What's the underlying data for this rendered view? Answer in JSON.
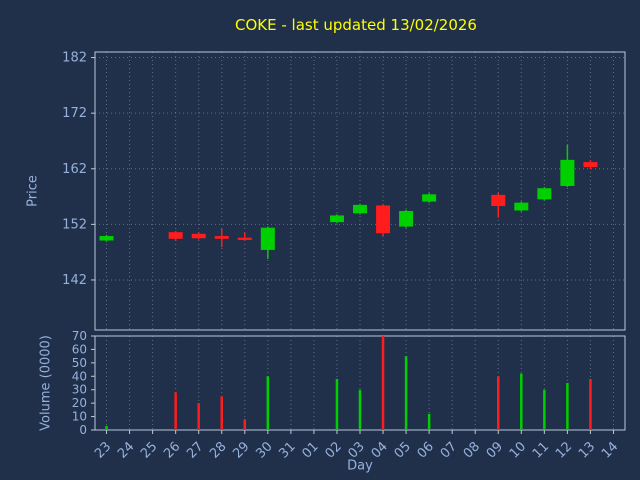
{
  "title": {
    "text": "COKE - last updated 13/02/2026",
    "color": "#ffff00"
  },
  "chart_data": {
    "type": "candlestick",
    "xlabel": "Day",
    "x_categories": [
      "23",
      "24",
      "25",
      "26",
      "27",
      "28",
      "29",
      "30",
      "31",
      "01",
      "02",
      "03",
      "04",
      "05",
      "06",
      "07",
      "08",
      "09",
      "10",
      "11",
      "12",
      "13",
      "14"
    ],
    "price_axis": {
      "label": "Price",
      "ticks": [
        142,
        152,
        162,
        172,
        182
      ],
      "range": [
        133,
        183
      ]
    },
    "volume_axis": {
      "label": "Volume (0000)",
      "ticks": [
        0,
        10,
        20,
        30,
        40,
        50,
        60,
        70
      ],
      "range": [
        0,
        70
      ]
    },
    "candles": [
      {
        "day": "23",
        "open": 149.1,
        "high": 150.1,
        "low": 148.9,
        "close": 149.9,
        "volume": 3
      },
      {
        "day": "26",
        "open": 150.6,
        "high": 150.8,
        "low": 149.0,
        "close": 149.4,
        "volume": 28
      },
      {
        "day": "27",
        "open": 150.3,
        "high": 150.5,
        "low": 149.3,
        "close": 149.5,
        "volume": 20
      },
      {
        "day": "28",
        "open": 149.9,
        "high": 151.2,
        "low": 147.9,
        "close": 149.4,
        "volume": 25
      },
      {
        "day": "29",
        "open": 149.6,
        "high": 150.5,
        "low": 149.1,
        "close": 149.2,
        "volume": 8
      },
      {
        "day": "30",
        "open": 147.4,
        "high": 151.6,
        "low": 145.8,
        "close": 151.4,
        "volume": 40
      },
      {
        "day": "02",
        "open": 152.4,
        "high": 153.8,
        "low": 152.2,
        "close": 153.6,
        "volume": 38
      },
      {
        "day": "03",
        "open": 154.0,
        "high": 155.7,
        "low": 153.8,
        "close": 155.5,
        "volume": 30
      },
      {
        "day": "04",
        "open": 155.4,
        "high": 155.6,
        "low": 149.9,
        "close": 150.4,
        "volume": 70
      },
      {
        "day": "05",
        "open": 151.6,
        "high": 154.6,
        "low": 151.4,
        "close": 154.4,
        "volume": 55
      },
      {
        "day": "06",
        "open": 156.1,
        "high": 157.6,
        "low": 155.9,
        "close": 157.4,
        "volume": 12
      },
      {
        "day": "09",
        "open": 157.3,
        "high": 157.7,
        "low": 153.2,
        "close": 155.3,
        "volume": 40
      },
      {
        "day": "10",
        "open": 154.5,
        "high": 156.1,
        "low": 154.3,
        "close": 155.9,
        "volume": 42
      },
      {
        "day": "11",
        "open": 156.5,
        "high": 158.7,
        "low": 156.3,
        "close": 158.5,
        "volume": 30
      },
      {
        "day": "12",
        "open": 158.9,
        "high": 166.3,
        "low": 158.7,
        "close": 163.6,
        "volume": 35
      },
      {
        "day": "13",
        "open": 163.2,
        "high": 163.5,
        "low": 161.9,
        "close": 162.3,
        "volume": 38
      }
    ],
    "colors": {
      "background": "#20304a",
      "up": "#00d000",
      "down": "#ff1c1c",
      "grid": "#c8d4e4",
      "frame": "#b9c9dc",
      "tick_text": "#96b1dc",
      "title": "#ffff00"
    }
  }
}
